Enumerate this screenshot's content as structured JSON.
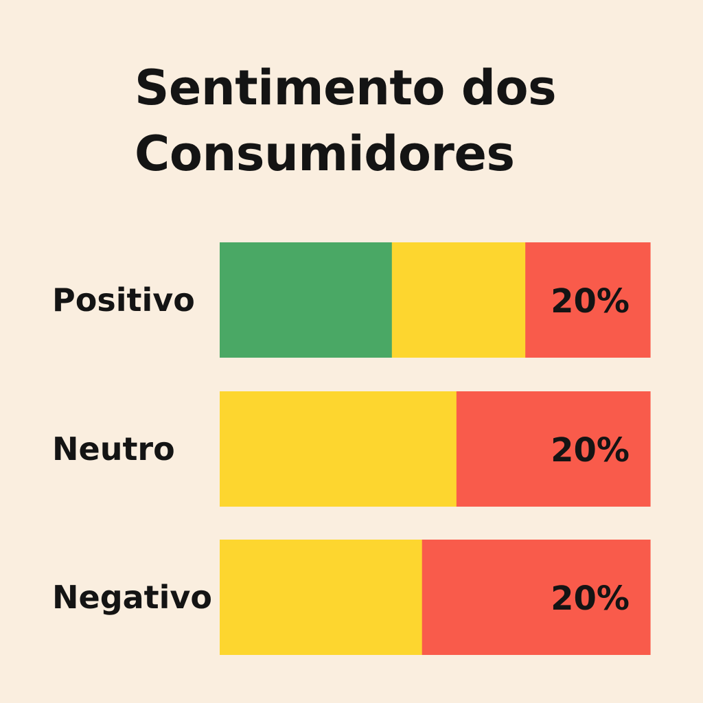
{
  "chart_data": {
    "type": "bar",
    "stacked": true,
    "orientation": "horizontal",
    "title": "Sentimento dos Consumidores",
    "xlabel": "",
    "ylabel": "",
    "grid": false,
    "legend": "none",
    "categories": [
      "Positivo",
      "Neutro",
      "Negativo"
    ],
    "series": [
      {
        "color": "#4AA865",
        "values": [
          40,
          0,
          0
        ]
      },
      {
        "color": "#FDD62F",
        "values": [
          31,
          55,
          47
        ]
      },
      {
        "color": "#F95B4B",
        "values": [
          29,
          45,
          53
        ]
      }
    ],
    "data_labels": [
      "20%",
      "20%",
      "20%"
    ]
  }
}
